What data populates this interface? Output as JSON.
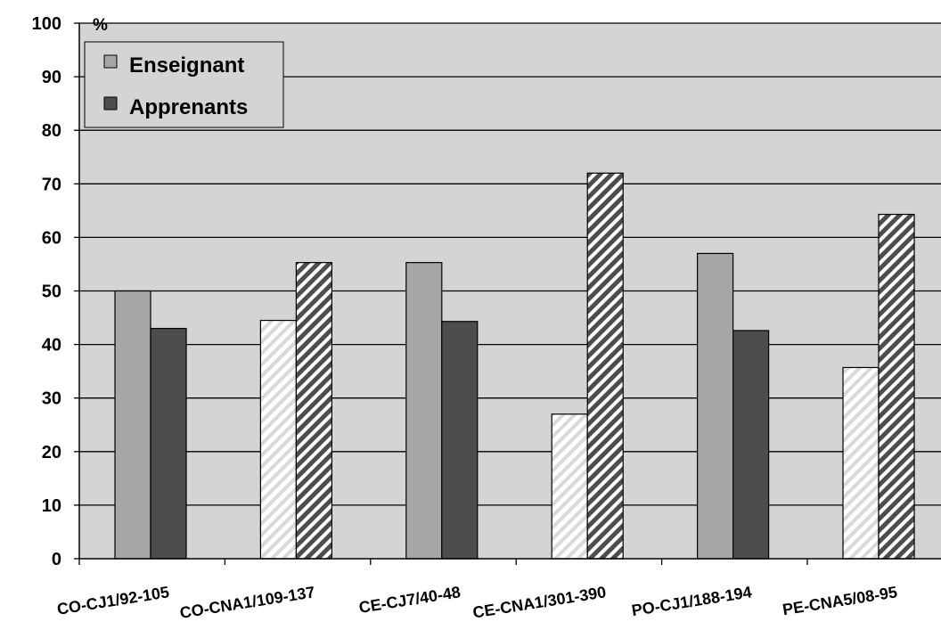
{
  "chart_data": {
    "type": "bar",
    "title": "",
    "xlabel": "",
    "ylabel": "%",
    "ylim": [
      0,
      100
    ],
    "yticks": [
      0,
      10,
      20,
      30,
      40,
      50,
      60,
      70,
      80,
      90,
      100
    ],
    "grid": true,
    "legend_position": "top-left",
    "categories": [
      "CO-CJ1/92-105",
      "CO-CNA1/109-137",
      "CE-CJ7/40-48",
      "CE-CNA1/301-390",
      "PO-CJ1/188-194",
      "PE-CNA5/08-95"
    ],
    "series": [
      {
        "name": "Enseignant",
        "values": [
          50,
          44.5,
          55.3,
          27,
          57,
          35.7
        ],
        "color": "#a6a6a6"
      },
      {
        "name": "Apprenants",
        "values": [
          43,
          55.3,
          44.3,
          72,
          42.6,
          64.3
        ],
        "color": "#4d4d4d"
      }
    ],
    "hatched_categories": [
      "CO-CNA1/109-137",
      "CE-CNA1/301-390",
      "PE-CNA5/08-95"
    ],
    "colors": {
      "plot_background": "#d4d4d4",
      "gridline": "#000000",
      "hatch_light": "#d9d9d9",
      "hatch_dark": "#4d4d4d"
    }
  }
}
